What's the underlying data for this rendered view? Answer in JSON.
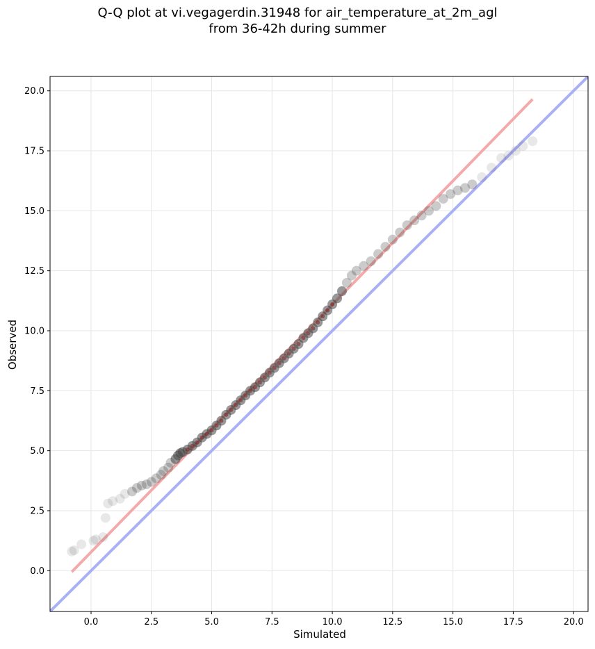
{
  "chart_data": {
    "type": "scatter",
    "title_line1": "Q-Q plot at vi.vegagerdin.31948 for air_temperature_at_2m_agl",
    "title_line2": "from 36-42h during summer",
    "xlabel": "Simulated",
    "ylabel": "Observed",
    "xlim": [
      -1.7,
      20.6
    ],
    "ylim": [
      -1.7,
      20.6
    ],
    "xticks": [
      "0.0",
      "2.5",
      "5.0",
      "7.5",
      "10.0",
      "12.5",
      "15.0",
      "17.5",
      "20.0"
    ],
    "yticks": [
      "0.0",
      "2.5",
      "5.0",
      "7.5",
      "10.0",
      "12.5",
      "15.0",
      "17.5",
      "20.0"
    ],
    "grid": true,
    "identity_line": {
      "color": "#aab0f5",
      "x": [
        -1.7,
        20.6
      ],
      "y": [
        -1.7,
        20.6
      ]
    },
    "fit_line": {
      "color": "#f4aaaa",
      "x": [
        -0.8,
        18.3
      ],
      "y": [
        -0.05,
        19.65
      ]
    },
    "point_color": "#444444",
    "points": {
      "x": [
        -0.8,
        -0.7,
        -0.4,
        0.1,
        0.2,
        0.5,
        0.6,
        0.7,
        0.9,
        1.2,
        1.4,
        1.7,
        1.9,
        2.1,
        2.3,
        2.5,
        2.7,
        2.9,
        3.0,
        3.2,
        3.3,
        3.5,
        3.6,
        3.7,
        3.8,
        4.0,
        4.2,
        4.4,
        4.6,
        4.8,
        5.0,
        5.2,
        5.4,
        5.6,
        5.8,
        6.0,
        6.2,
        6.4,
        6.6,
        6.8,
        7.0,
        7.2,
        7.4,
        7.6,
        7.8,
        8.0,
        8.2,
        8.4,
        8.6,
        8.8,
        9.0,
        9.2,
        9.4,
        9.6,
        9.8,
        10.0,
        10.2,
        10.4,
        10.6,
        10.8,
        11.0,
        11.3,
        11.6,
        11.9,
        12.2,
        12.5,
        12.8,
        13.1,
        13.4,
        13.7,
        14.0,
        14.3,
        14.6,
        14.9,
        15.2,
        15.5,
        15.8,
        16.2,
        16.6,
        17.0,
        17.3,
        17.6,
        17.9,
        18.3
      ],
      "y": [
        0.8,
        0.85,
        1.1,
        1.25,
        1.3,
        1.4,
        2.2,
        2.8,
        2.9,
        3.0,
        3.2,
        3.3,
        3.45,
        3.55,
        3.6,
        3.7,
        3.85,
        4.0,
        4.15,
        4.3,
        4.5,
        4.65,
        4.8,
        4.9,
        4.95,
        5.05,
        5.2,
        5.35,
        5.55,
        5.7,
        5.85,
        6.05,
        6.25,
        6.5,
        6.7,
        6.9,
        7.1,
        7.3,
        7.5,
        7.65,
        7.85,
        8.05,
        8.25,
        8.45,
        8.65,
        8.85,
        9.05,
        9.25,
        9.45,
        9.7,
        9.9,
        10.1,
        10.35,
        10.6,
        10.85,
        11.1,
        11.35,
        11.65,
        12.0,
        12.3,
        12.5,
        12.7,
        12.9,
        13.2,
        13.5,
        13.8,
        14.1,
        14.4,
        14.6,
        14.8,
        15.0,
        15.2,
        15.5,
        15.7,
        15.85,
        15.95,
        16.1,
        16.4,
        16.8,
        17.2,
        17.3,
        17.5,
        17.7,
        17.9
      ]
    }
  }
}
